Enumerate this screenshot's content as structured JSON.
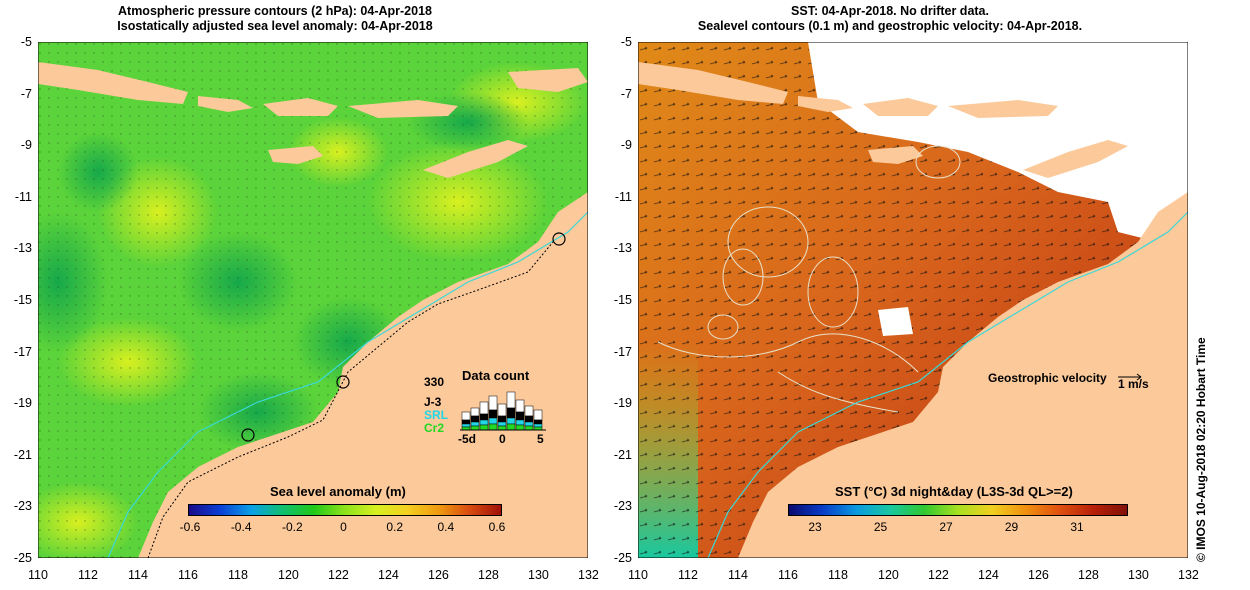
{
  "left": {
    "title_line1": "Atmospheric pressure contours (2 hPa): 04-Apr-2018",
    "title_line2": "Isostatically adjusted sea level anomaly: 04-Apr-2018",
    "colorbar": {
      "label": "Sea level anomaly (m)",
      "ticks": [
        "-0.6",
        "-0.4",
        "-0.2",
        "0",
        "0.2",
        "0.4",
        "0.6"
      ],
      "colors": [
        "#1a0a8a",
        "#0a3fd6",
        "#0aa0e6",
        "#10c070",
        "#22c818",
        "#8ee31c",
        "#d8f020",
        "#f4d020",
        "#f09a10",
        "#d84a10",
        "#a01008"
      ]
    },
    "data_count": {
      "title": "Data count",
      "max_label": "330",
      "missions": [
        {
          "name": "J-3",
          "color": "#000000"
        },
        {
          "name": "SRL",
          "color": "#22d6e6"
        },
        {
          "name": "Cr2",
          "color": "#22d822"
        }
      ],
      "x_ticks": [
        "-5d",
        "0",
        "5"
      ]
    }
  },
  "right": {
    "title_line1": "SST: 04-Apr-2018. No drifter data.",
    "title_line2": "Sealevel contours (0.1 m) and geostrophic velocity: 04-Apr-2018.",
    "colorbar": {
      "label": "SST (°C) 3d night&day (L3S-3d QL>=2)",
      "ticks": [
        "23",
        "25",
        "27",
        "29",
        "31"
      ],
      "colors": [
        "#0a0a70",
        "#0a3cc8",
        "#0a9ae0",
        "#18c8a0",
        "#30c830",
        "#a8e020",
        "#f0d020",
        "#f09010",
        "#e05010",
        "#b82008",
        "#801008"
      ]
    },
    "velocity_legend": {
      "label": "Geostrophic velocity",
      "scale": "1 m/s"
    }
  },
  "axes": {
    "lon_ticks": [
      "110",
      "112",
      "114",
      "116",
      "118",
      "120",
      "122",
      "124",
      "126",
      "128",
      "130",
      "132"
    ],
    "lat_ticks": [
      "-5",
      "-7",
      "-9",
      "-11",
      "-13",
      "-15",
      "-17",
      "-19",
      "-21",
      "-23",
      "-25"
    ]
  },
  "credit": "© IMOS 10-Aug-2018 02:20 Hobart Time",
  "colors": {
    "land": "#fbc99a",
    "ocean_left": "#5bd33a",
    "ocean_right": "#d8641c",
    "cloud": "#ffffff"
  }
}
